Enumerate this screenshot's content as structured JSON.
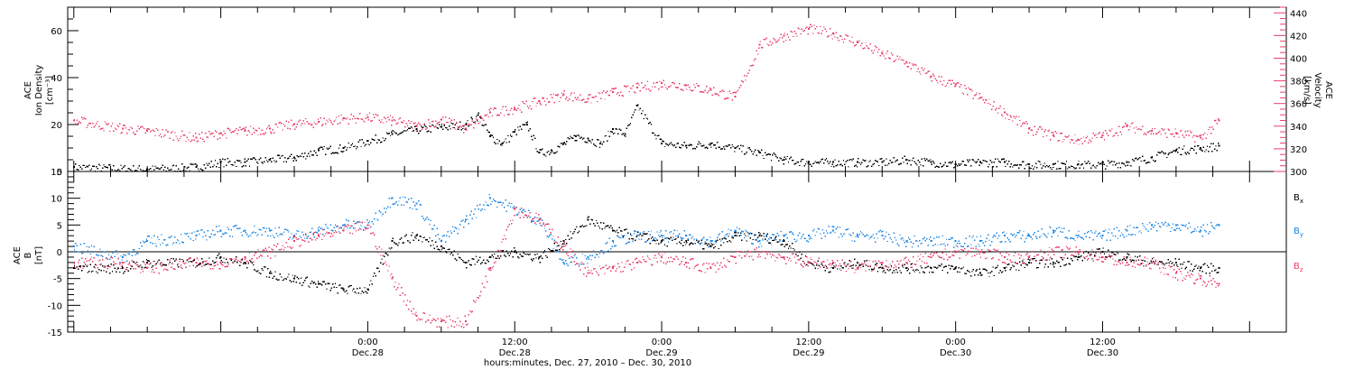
{
  "chart_data": [
    {
      "type": "scatter",
      "panel": "top",
      "ylabel_left": [
        "ACE",
        "Ion Density",
        "[cm⁻³]"
      ],
      "ylabel_right": [
        "ACE",
        "Velocity",
        "[km/s]"
      ],
      "ylim_left": [
        0,
        70
      ],
      "ylim_right": [
        300,
        445
      ],
      "left_ticks": [
        "0",
        "20",
        "40",
        "60"
      ],
      "right_ticks": [
        "300",
        "320",
        "340",
        "360",
        "380",
        "400",
        "420",
        "440"
      ],
      "series": [
        {
          "name": "Ion Density",
          "color": "#000000",
          "axis": "left",
          "x": [
            -24,
            -18,
            -14,
            -12,
            -10,
            -8,
            -6,
            -4,
            -2,
            0,
            2,
            4,
            6,
            8,
            9,
            10,
            11,
            12,
            13,
            14,
            15,
            16,
            17,
            18,
            19,
            20,
            21,
            22,
            24,
            26,
            28,
            30,
            32,
            34,
            36,
            38,
            40,
            42,
            44,
            46,
            48,
            50,
            52,
            54,
            56,
            58,
            60,
            62,
            64,
            66,
            68,
            69.5
          ],
          "y": [
            2,
            1,
            2,
            4,
            4,
            5,
            6,
            9,
            10,
            13,
            16,
            18,
            19,
            20,
            24,
            15,
            12,
            17,
            20,
            8,
            9,
            12,
            15,
            14,
            12,
            18,
            16,
            28,
            12,
            11,
            12,
            10,
            8,
            5,
            4,
            4,
            4,
            4,
            5,
            4,
            3,
            4,
            4,
            3,
            3,
            3,
            3,
            4,
            6,
            9,
            10,
            11
          ]
        },
        {
          "name": "Velocity",
          "color": "#e8406a",
          "axis": "right",
          "x": [
            -24,
            -20,
            -18,
            -14,
            -12,
            -10,
            -8,
            -6,
            -4,
            -2,
            0,
            2,
            4,
            6,
            8,
            10,
            12,
            14,
            16,
            18,
            20,
            22,
            24,
            26,
            28,
            30,
            32,
            34,
            36,
            38,
            40,
            42,
            44,
            46,
            48,
            50,
            52,
            54,
            56,
            58,
            60,
            62,
            64,
            66,
            68,
            69.5
          ],
          "y": [
            345,
            338,
            336,
            330,
            334,
            336,
            338,
            342,
            344,
            347,
            348,
            345,
            340,
            346,
            338,
            352,
            356,
            362,
            368,
            364,
            370,
            374,
            378,
            376,
            372,
            366,
            412,
            420,
            426,
            422,
            414,
            404,
            396,
            384,
            376,
            365,
            352,
            338,
            332,
            328,
            332,
            340,
            336,
            334,
            330,
            345
          ]
        }
      ]
    },
    {
      "type": "scatter",
      "panel": "bottom",
      "ylabel_left": [
        "ACE",
        "B",
        "[nT]"
      ],
      "ylim": [
        -15,
        15
      ],
      "left_ticks": [
        "-15",
        "-10",
        "-5",
        "0",
        "5",
        "10",
        "15"
      ],
      "series": [
        {
          "name": "B",
          "sub": "x",
          "color": "#000000",
          "x": [
            -24,
            -20,
            -18,
            -14,
            -12,
            -10,
            -8,
            -6,
            -4,
            -2,
            0,
            2,
            4,
            6,
            8,
            10,
            12,
            14,
            16,
            18,
            20,
            22,
            24,
            26,
            28,
            30,
            32,
            34,
            36,
            38,
            40,
            42,
            44,
            46,
            48,
            50,
            52,
            54,
            56,
            58,
            60,
            62,
            64,
            66,
            68,
            69.5
          ],
          "y": [
            -3,
            -3,
            -2,
            -2,
            -1,
            -2,
            -4,
            -5,
            -6,
            -7,
            -7,
            2,
            3,
            1,
            -2,
            -1,
            0,
            -1,
            2,
            6,
            4,
            3,
            2,
            2,
            1,
            3,
            3,
            2,
            -2,
            -3,
            -2,
            -3,
            -3,
            -3,
            -3,
            -4,
            -3,
            -2,
            -2,
            -1,
            0,
            -1,
            -2,
            -2,
            -3,
            -3
          ]
        },
        {
          "name": "B",
          "sub": "y",
          "color": "#1e88e5",
          "x": [
            -24,
            -20,
            -18,
            -14,
            -12,
            -10,
            -8,
            -6,
            -4,
            -2,
            0,
            2,
            4,
            6,
            8,
            10,
            12,
            14,
            16,
            18,
            20,
            22,
            24,
            26,
            28,
            30,
            32,
            34,
            36,
            38,
            40,
            42,
            44,
            46,
            48,
            50,
            52,
            54,
            56,
            58,
            60,
            62,
            64,
            66,
            68,
            69.5
          ],
          "y": [
            1,
            -1,
            2,
            3,
            4,
            4,
            4,
            3,
            4,
            5,
            5,
            10,
            9,
            2,
            6,
            10,
            8,
            6,
            -2,
            -1,
            2,
            3,
            3,
            3,
            2,
            4,
            2,
            3,
            3,
            4,
            3,
            3,
            2,
            2,
            2,
            2,
            3,
            3,
            4,
            3,
            3,
            4,
            5,
            5,
            4,
            5
          ]
        },
        {
          "name": "B",
          "sub": "z",
          "color": "#e8406a",
          "x": [
            -24,
            -20,
            -18,
            -14,
            -12,
            -10,
            -8,
            -6,
            -4,
            -2,
            0,
            2,
            4,
            6,
            8,
            10,
            12,
            14,
            16,
            18,
            20,
            22,
            24,
            26,
            28,
            30,
            32,
            34,
            36,
            38,
            40,
            42,
            44,
            46,
            48,
            50,
            52,
            54,
            56,
            58,
            60,
            62,
            64,
            66,
            68,
            69.5
          ],
          "y": [
            -2,
            -2,
            -3,
            -2,
            -2,
            -1,
            0,
            2,
            3,
            4,
            5,
            -5,
            -12,
            -13,
            -13,
            -3,
            8,
            6,
            1,
            -4,
            -3,
            -2,
            -1,
            -2,
            -3,
            -1,
            0,
            -1,
            -2,
            -2,
            -3,
            -2,
            -2,
            -1,
            0,
            0,
            -1,
            -1,
            0,
            0,
            -1,
            -2,
            -2,
            -4,
            -5,
            -6
          ]
        }
      ]
    }
  ],
  "x_axis": {
    "xlim": [
      -24.5,
      75
    ],
    "tick_hours": [
      0,
      12,
      24,
      36,
      48,
      60
    ],
    "tick_top": [
      "0:00",
      "12:00",
      "0:00",
      "12:00",
      "0:00",
      "12:00"
    ],
    "tick_bottom": [
      "Dec.28",
      "Dec.28",
      "Dec.29",
      "Dec.29",
      "Dec.30",
      "Dec.30"
    ],
    "caption": "hours:minutes, Dec. 27, 2010 – Dec. 30, 2010"
  }
}
